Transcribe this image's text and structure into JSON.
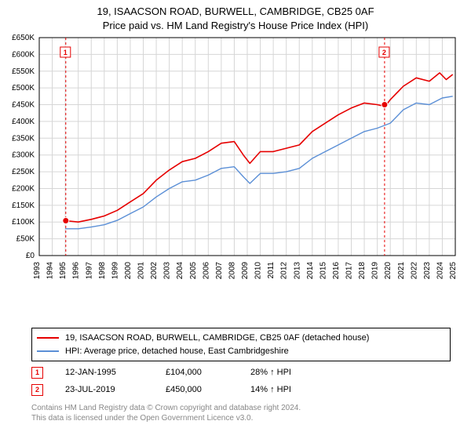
{
  "title": {
    "line1": "19, ISAACSON ROAD, BURWELL, CAMBRIDGE, CB25 0AF",
    "line2": "Price paid vs. HM Land Registry's House Price Index (HPI)"
  },
  "chart": {
    "type": "line",
    "background_color": "#ffffff",
    "plot_border_color": "#000000",
    "grid_color": "#d6d6d6",
    "axis_font_size": 10,
    "axis_font_color": "#000000",
    "y": {
      "min": 0,
      "max": 650000,
      "tick_step": 50000,
      "tick_labels": [
        "£0",
        "£50K",
        "£100K",
        "£150K",
        "£200K",
        "£250K",
        "£300K",
        "£350K",
        "£400K",
        "£450K",
        "£500K",
        "£550K",
        "£600K",
        "£650K"
      ]
    },
    "x": {
      "min": 1993,
      "max": 2025,
      "tick_step": 1,
      "tick_labels": [
        "1993",
        "1994",
        "1995",
        "1996",
        "1997",
        "1998",
        "1999",
        "2000",
        "2001",
        "2002",
        "2003",
        "2004",
        "2005",
        "2006",
        "2007",
        "2008",
        "2009",
        "2010",
        "2011",
        "2012",
        "2013",
        "2014",
        "2015",
        "2016",
        "2017",
        "2018",
        "2019",
        "2020",
        "2021",
        "2022",
        "2023",
        "2024",
        "2025"
      ]
    },
    "series": [
      {
        "id": "price_paid",
        "label": "19, ISAACSON ROAD, BURWELL, CAMBRIDGE, CB25 0AF (detached house)",
        "color": "#e60000",
        "line_width": 1.6,
        "x": [
          1995,
          1996,
          1997,
          1998,
          1999,
          2000,
          2001,
          2002,
          2003,
          2004,
          2005,
          2006,
          2007,
          2008,
          2008.7,
          2009.2,
          2010,
          2011,
          2012,
          2013,
          2014,
          2015,
          2016,
          2017,
          2018,
          2019,
          2019.6,
          2020,
          2021,
          2022,
          2023,
          2023.8,
          2024.3,
          2024.8
        ],
        "y": [
          104000,
          100000,
          108000,
          118000,
          135000,
          160000,
          185000,
          225000,
          255000,
          280000,
          290000,
          310000,
          335000,
          340000,
          300000,
          275000,
          310000,
          310000,
          320000,
          330000,
          370000,
          395000,
          420000,
          440000,
          455000,
          450000,
          445000,
          465000,
          505000,
          530000,
          520000,
          545000,
          525000,
          540000
        ]
      },
      {
        "id": "hpi",
        "label": "HPI: Average price, detached house, East Cambridgeshire",
        "color": "#5b8fd6",
        "line_width": 1.4,
        "x": [
          1995,
          1996,
          1997,
          1998,
          1999,
          2000,
          2001,
          2002,
          2003,
          2004,
          2005,
          2006,
          2007,
          2008,
          2008.7,
          2009.2,
          2010,
          2011,
          2012,
          2013,
          2014,
          2015,
          2016,
          2017,
          2018,
          2019,
          2020,
          2021,
          2022,
          2023,
          2024,
          2024.8
        ],
        "y": [
          80000,
          80000,
          85000,
          92000,
          105000,
          125000,
          145000,
          175000,
          200000,
          220000,
          225000,
          240000,
          260000,
          265000,
          235000,
          215000,
          245000,
          245000,
          250000,
          260000,
          290000,
          310000,
          330000,
          350000,
          370000,
          380000,
          395000,
          435000,
          455000,
          450000,
          470000,
          475000
        ]
      }
    ],
    "markers": [
      {
        "id": "1",
        "x": 1995.04,
        "y": 104000,
        "color": "#e60000",
        "border_color": "#e60000",
        "label_y_offset": -0.85
      },
      {
        "id": "2",
        "x": 2019.56,
        "y": 450000,
        "color": "#e60000",
        "border_color": "#e60000",
        "label_y_offset": -0.8
      }
    ],
    "marker_vline_color": "#e60000",
    "marker_vline_dash": "3,3",
    "marker_dot_radius": 4
  },
  "legend": {
    "rows": [
      {
        "color": "#e60000",
        "text": "19, ISAACSON ROAD, BURWELL, CAMBRIDGE, CB25 0AF (detached house)"
      },
      {
        "color": "#5b8fd6",
        "text": "HPI: Average price, detached house, East Cambridgeshire"
      }
    ]
  },
  "events": [
    {
      "id": "1",
      "color": "#e60000",
      "date": "12-JAN-1995",
      "price": "£104,000",
      "pct": "28% ↑ HPI"
    },
    {
      "id": "2",
      "color": "#e60000",
      "date": "23-JUL-2019",
      "price": "£450,000",
      "pct": "14% ↑ HPI"
    }
  ],
  "footer": {
    "line1": "Contains HM Land Registry data © Crown copyright and database right 2024.",
    "line2": "This data is licensed under the Open Government Licence v3.0."
  }
}
